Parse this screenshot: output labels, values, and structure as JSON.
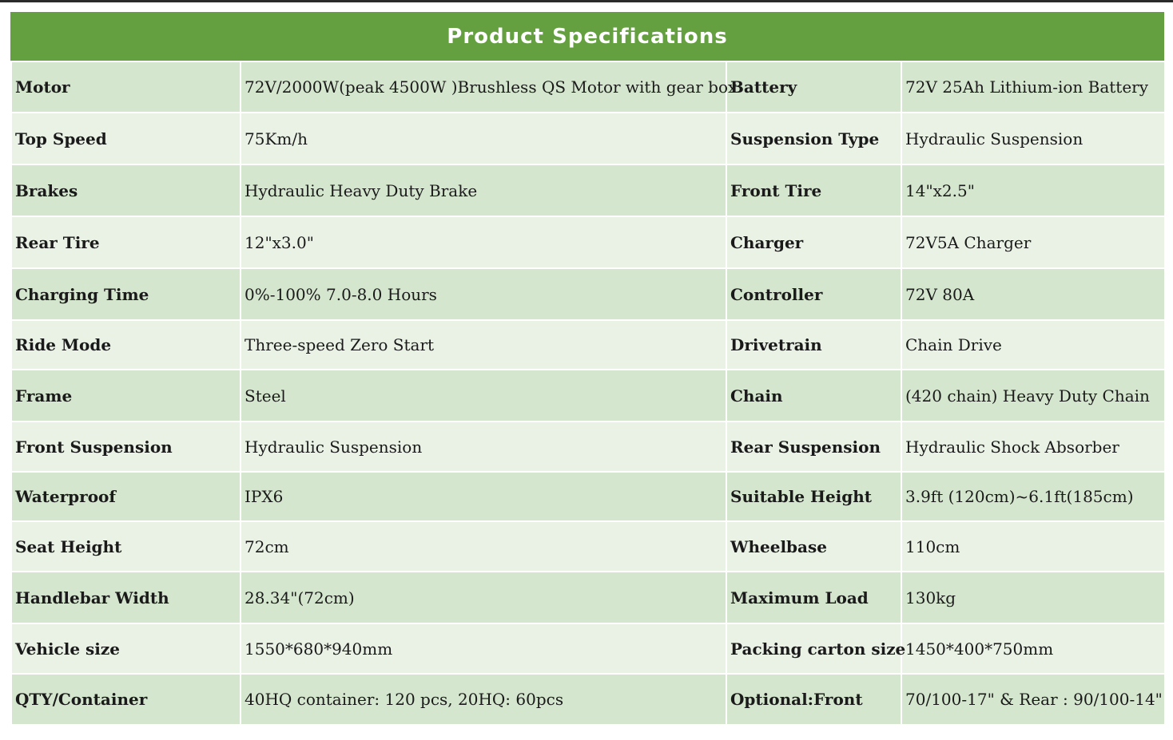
{
  "title": "Product Specifications",
  "rows": [
    {
      "label1": "Motor",
      "value1": "72V/2000W(peak 4500W )Brushless  QS Motor with gear box",
      "label2": "Battery",
      "value2": "72V 25Ah Lithium-ion Battery"
    },
    {
      "label1": "Top Speed",
      "value1": " 75Km/h",
      "label2": "Suspension Type",
      "value2": "Hydraulic Suspension"
    },
    {
      "label1": "Brakes",
      "value1": "Hydraulic Heavy Duty Brake",
      "label2": "Front Tire",
      "value2": "14\"x2.5\""
    },
    {
      "label1": "Rear Tire",
      "value1": "12\"x3.0\"",
      "label2": "Charger",
      "value2": "72V5A Charger"
    },
    {
      "label1": "Charging Time",
      "value1": "0%-100% 7.0-8.0 Hours",
      "label2": "Controller",
      "value2": "72V 80A"
    },
    {
      "label1": "Ride Mode",
      "value1": "Three-speed Zero Start",
      "label2": "Drivetrain",
      "value2": "Chain Drive"
    },
    {
      "label1": "Frame",
      "value1": "Steel",
      "label2": "Chain",
      "value2": "(420 chain) Heavy Duty Chain"
    },
    {
      "label1": "Front Suspension",
      "value1": "Hydraulic Suspension",
      "label2": "Rear Suspension",
      "value2": "Hydraulic Shock Absorber"
    },
    {
      "label1": "Waterproof",
      "value1": "IPX6",
      "label2": "Suitable Height",
      "value2": "3.9ft (120cm)~6.1ft(185cm)"
    },
    {
      "label1": "Seat Height",
      "value1": "72cm",
      "label2": "Wheelbase",
      "value2": "110cm"
    },
    {
      "label1": "Handlebar Width",
      "value1": "28.34\"(72cm)",
      "label2": "Maximum Load",
      "value2": "130kg"
    },
    {
      "label1": "Vehicle size",
      "value1": "1550*680*940mm",
      "label2": "Packing carton size",
      "value2": "1450*400*750mm"
    },
    {
      "label1": "QTY/Container",
      "value1": "40HQ container: 120 pcs, 20HQ: 60pcs",
      "label2": "Optional:Front",
      "value2": "70/100-17\" & Rear : 90/100-14\""
    }
  ]
}
